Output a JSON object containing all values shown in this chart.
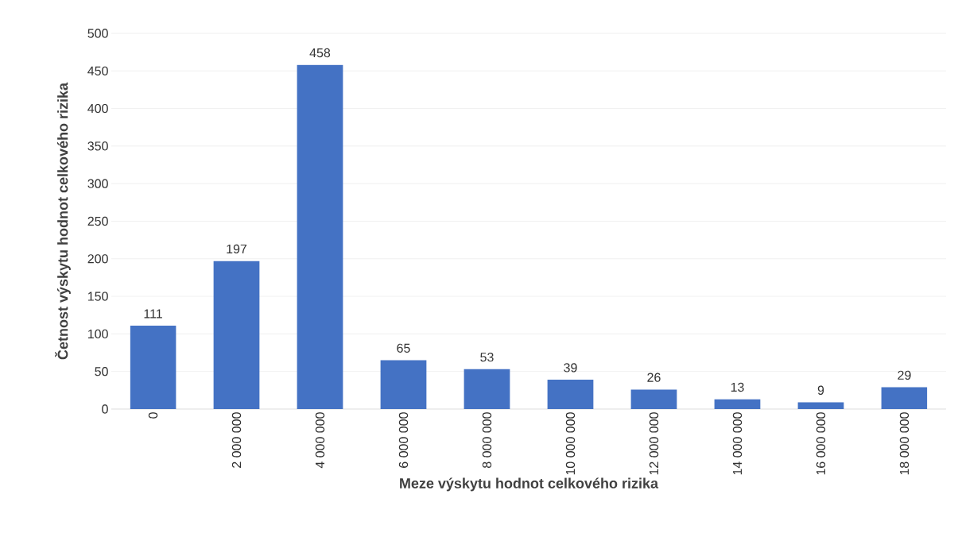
{
  "chart_data": {
    "type": "bar",
    "xlabel": "Meze výskytu hodnot celkového rizika",
    "ylabel": "Četnost výskytu hodnot celkového rizika",
    "categories": [
      "0",
      "2 000 000",
      "4 000 000",
      "6 000 000",
      "8 000 000",
      "10 000 000",
      "12 000 000",
      "14 000 000",
      "16 000 000",
      "18 000 000"
    ],
    "values": [
      111,
      197,
      458,
      65,
      53,
      39,
      26,
      13,
      9,
      29
    ],
    "color": "#4472c4",
    "ylim": [
      0,
      500
    ],
    "yticks": [
      0,
      50,
      100,
      150,
      200,
      250,
      300,
      350,
      400,
      450,
      500
    ],
    "grid": "y",
    "data_labels": true
  }
}
